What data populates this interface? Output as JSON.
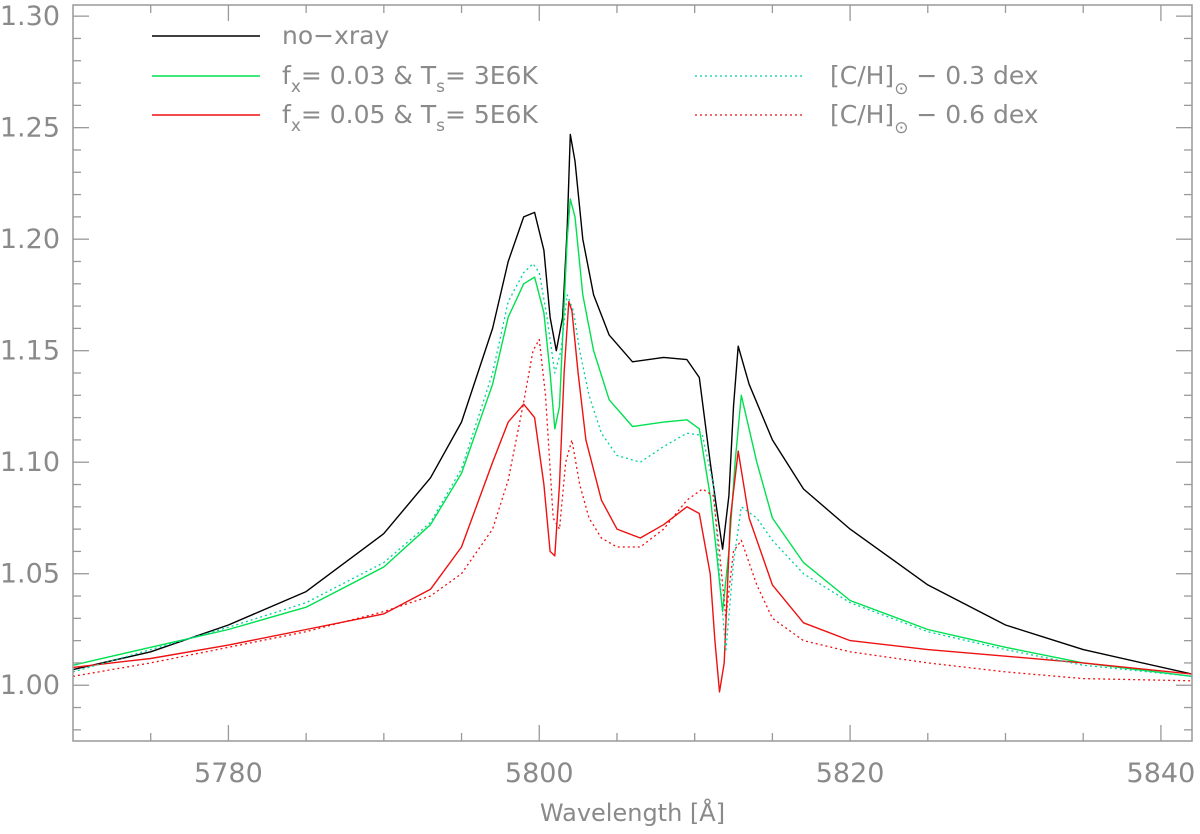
{
  "chart_data": {
    "type": "line",
    "title": "",
    "xlabel": "Wavelength [Å]",
    "ylabel": "",
    "xlim": [
      5770,
      5842
    ],
    "ylim": [
      0.975,
      1.305
    ],
    "xticks": [
      5780,
      5800,
      5820,
      5840
    ],
    "xtick_labels": [
      "5780",
      "5800",
      "5820",
      "5840"
    ],
    "yticks": [
      1.0,
      1.05,
      1.1,
      1.15,
      1.2,
      1.25,
      1.3
    ],
    "ytick_labels": [
      "1.00",
      "1.05",
      "1.10",
      "1.15",
      "1.20",
      "1.25",
      "1.30"
    ],
    "grid": false,
    "legend": {
      "placement": "top",
      "entries": [
        {
          "series": 0,
          "main": "no−xray",
          "column": 0
        },
        {
          "series": 1,
          "parts": [
            [
              "f",
              "x",
              "= 0.03 & T",
              "s",
              "= 3E6K"
            ]
          ],
          "column": 0
        },
        {
          "series": 2,
          "parts": [
            [
              "f",
              "x",
              "= 0.05 & T",
              "s",
              "= 5E6K"
            ]
          ],
          "column": 0
        },
        {
          "series": 3,
          "main": "[C/H]",
          "sub": "⊙",
          "tail": " − 0.3 dex",
          "column": 1
        },
        {
          "series": 4,
          "main": "[C/H]",
          "sub": "⊙",
          "tail": " − 0.6 dex",
          "column": 1
        }
      ]
    },
    "series": [
      {
        "name": "no−xray",
        "color": "#000000",
        "style": "solid",
        "x": [
          5770,
          5775,
          5780,
          5785,
          5790,
          5793,
          5795,
          5797,
          5798,
          5799,
          5799.7,
          5800.3,
          5800.7,
          5801.1,
          5801.5,
          5801.8,
          5802,
          5802.3,
          5802.8,
          5803.5,
          5804.5,
          5806,
          5808,
          5809.5,
          5810.3,
          5811,
          5811.4,
          5811.8,
          5812.2,
          5812.5,
          5812.8,
          5813.5,
          5815,
          5817,
          5820,
          5825,
          5830,
          5835,
          5842
        ],
        "y": [
          1.007,
          1.015,
          1.027,
          1.042,
          1.068,
          1.093,
          1.118,
          1.16,
          1.19,
          1.21,
          1.212,
          1.195,
          1.165,
          1.15,
          1.165,
          1.205,
          1.247,
          1.235,
          1.2,
          1.175,
          1.157,
          1.145,
          1.147,
          1.146,
          1.138,
          1.1,
          1.08,
          1.061,
          1.085,
          1.125,
          1.152,
          1.135,
          1.11,
          1.088,
          1.07,
          1.045,
          1.027,
          1.016,
          1.005
        ]
      },
      {
        "name": "f_x= 0.03 & T_s= 3E6K",
        "color": "#00e050",
        "style": "solid",
        "x": [
          5770,
          5775,
          5780,
          5785,
          5790,
          5793,
          5795,
          5797,
          5798,
          5799,
          5799.7,
          5800.3,
          5800.7,
          5801,
          5801.3,
          5801.6,
          5801.8,
          5802,
          5802.3,
          5802.8,
          5803.5,
          5804.5,
          5806,
          5808,
          5809.5,
          5810.3,
          5811,
          5811.4,
          5811.8,
          5812.2,
          5812.6,
          5813,
          5814,
          5815,
          5817,
          5820,
          5825,
          5830,
          5835,
          5842
        ],
        "y": [
          1.009,
          1.017,
          1.025,
          1.035,
          1.053,
          1.072,
          1.095,
          1.135,
          1.165,
          1.18,
          1.183,
          1.167,
          1.14,
          1.115,
          1.125,
          1.17,
          1.2,
          1.218,
          1.21,
          1.175,
          1.15,
          1.128,
          1.116,
          1.118,
          1.119,
          1.115,
          1.085,
          1.06,
          1.033,
          1.06,
          1.1,
          1.13,
          1.1,
          1.075,
          1.055,
          1.038,
          1.025,
          1.017,
          1.01,
          1.004
        ]
      },
      {
        "name": "f_x= 0.05 & T_s= 5E6K",
        "color": "#ee1111",
        "style": "solid",
        "x": [
          5770,
          5775,
          5780,
          5785,
          5790,
          5793,
          5795,
          5797,
          5798,
          5799,
          5799.7,
          5800.3,
          5800.7,
          5801,
          5801.3,
          5801.6,
          5801.9,
          5802.1,
          5802.5,
          5803,
          5804,
          5805,
          5806.5,
          5808,
          5809.5,
          5810.3,
          5811,
          5811.3,
          5811.6,
          5811.9,
          5812.3,
          5812.8,
          5813.5,
          5815,
          5817,
          5820,
          5825,
          5830,
          5835,
          5842
        ],
        "y": [
          1.008,
          1.012,
          1.018,
          1.025,
          1.032,
          1.043,
          1.062,
          1.1,
          1.118,
          1.126,
          1.12,
          1.09,
          1.06,
          1.058,
          1.09,
          1.14,
          1.172,
          1.168,
          1.14,
          1.11,
          1.083,
          1.07,
          1.066,
          1.072,
          1.08,
          1.077,
          1.05,
          1.02,
          0.997,
          1.01,
          1.075,
          1.105,
          1.075,
          1.045,
          1.028,
          1.02,
          1.016,
          1.013,
          1.01,
          1.005
        ]
      },
      {
        "name": "[C/H]⊙ − 0.3 dex",
        "color": "#00d0a0",
        "style": "dotted",
        "x": [
          5770,
          5775,
          5780,
          5785,
          5790,
          5793,
          5795,
          5797,
          5798,
          5799,
          5799.6,
          5800,
          5800.5,
          5801,
          5801.4,
          5801.8,
          5802.2,
          5802.6,
          5803.2,
          5804,
          5805,
          5806.5,
          5808,
          5809.5,
          5810.5,
          5811.2,
          5811.6,
          5812,
          5812.5,
          5813,
          5814,
          5815,
          5817,
          5820,
          5825,
          5830,
          5835,
          5842
        ],
        "y": [
          1.006,
          1.016,
          1.026,
          1.037,
          1.055,
          1.073,
          1.097,
          1.14,
          1.172,
          1.185,
          1.189,
          1.185,
          1.165,
          1.14,
          1.15,
          1.175,
          1.168,
          1.15,
          1.13,
          1.113,
          1.103,
          1.1,
          1.107,
          1.113,
          1.112,
          1.09,
          1.05,
          1.015,
          1.055,
          1.08,
          1.075,
          1.065,
          1.05,
          1.037,
          1.024,
          1.016,
          1.009,
          1.004
        ]
      },
      {
        "name": "[C/H]⊙ − 0.6 dex",
        "color": "#ee1111",
        "style": "dotted",
        "x": [
          5770,
          5775,
          5780,
          5785,
          5790,
          5793,
          5795,
          5797,
          5798,
          5799,
          5799.6,
          5800,
          5800.4,
          5800.9,
          5801.3,
          5801.7,
          5802.1,
          5802.6,
          5803.2,
          5804,
          5805,
          5806.5,
          5808,
          5809.5,
          5810.5,
          5811.2,
          5811.6,
          5812,
          5812.5,
          5813,
          5814,
          5815,
          5817,
          5820,
          5825,
          5830,
          5835,
          5842
        ],
        "y": [
          1.004,
          1.01,
          1.017,
          1.024,
          1.033,
          1.04,
          1.05,
          1.07,
          1.092,
          1.127,
          1.15,
          1.155,
          1.13,
          1.075,
          1.07,
          1.1,
          1.11,
          1.09,
          1.075,
          1.066,
          1.062,
          1.062,
          1.07,
          1.083,
          1.088,
          1.085,
          1.06,
          1.03,
          1.06,
          1.065,
          1.045,
          1.03,
          1.02,
          1.015,
          1.01,
          1.006,
          1.003,
          1.002
        ]
      }
    ]
  }
}
